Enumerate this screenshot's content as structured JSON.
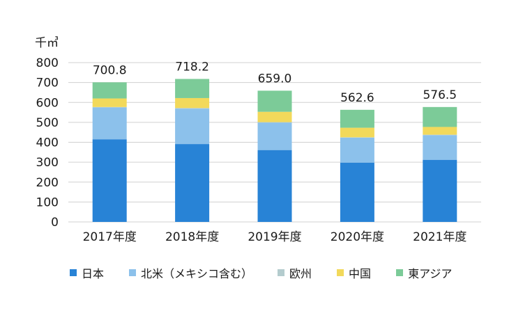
{
  "chart_data": {
    "type": "bar",
    "stacked": true,
    "unit_label": "千㎥",
    "categories": [
      "2017年度",
      "2018年度",
      "2019年度",
      "2020年度",
      "2021年度"
    ],
    "series": [
      {
        "name": "日本",
        "color": "#2883d6",
        "values": [
          415,
          391,
          361,
          298,
          312
        ]
      },
      {
        "name": "北米（メキシコ含む）",
        "color": "#8cc1eb",
        "values": [
          160,
          178,
          138,
          125,
          124
        ]
      },
      {
        "name": "欧州",
        "color": "#b4ccce",
        "values": [
          2,
          3,
          2,
          2,
          2
        ]
      },
      {
        "name": "中国",
        "color": "#f2d95b",
        "values": [
          43,
          50,
          52,
          48,
          39
        ]
      },
      {
        "name": "東アジア",
        "color": "#7ccb98",
        "values": [
          81,
          96,
          106,
          90,
          100
        ]
      }
    ],
    "totals": [
      700.8,
      718.2,
      659.0,
      562.6,
      576.5
    ],
    "total_labels": [
      "700.8",
      "718.2",
      "659.0",
      "562.6",
      "576.5"
    ],
    "ylim": [
      0,
      800
    ],
    "yticks": [
      "0",
      "100",
      "200",
      "300",
      "400",
      "500",
      "600",
      "700",
      "800"
    ],
    "grid": true,
    "legend_position": "bottom"
  }
}
